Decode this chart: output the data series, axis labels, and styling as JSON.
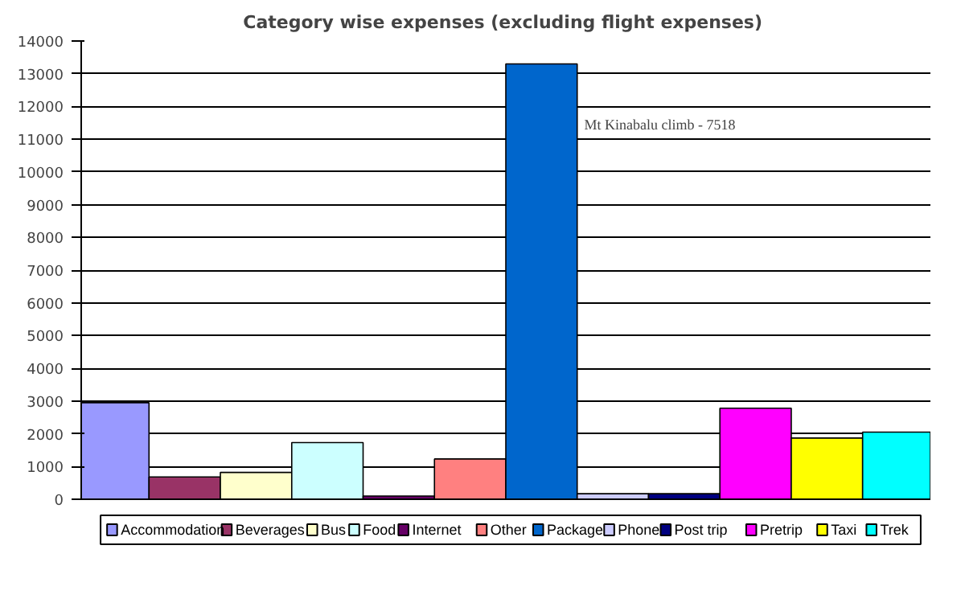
{
  "chart_data": {
    "type": "bar",
    "title": "Category wise expenses  (excluding flight expenses)",
    "categories": [
      null
    ],
    "series": [
      {
        "name": "Accommodation",
        "color": "#9999ff",
        "values": [
          2950
        ]
      },
      {
        "name": "Beverages",
        "color": "#993366",
        "values": [
          680
        ]
      },
      {
        "name": "Bus",
        "color": "#ffffcc",
        "values": [
          820
        ]
      },
      {
        "name": "Food",
        "color": "#ccffff",
        "values": [
          1730
        ]
      },
      {
        "name": "Internet",
        "color": "#660066",
        "values": [
          100
        ]
      },
      {
        "name": "Other",
        "color": "#ff8080",
        "values": [
          1230
        ]
      },
      {
        "name": "Package",
        "color": "#0066cc",
        "values": [
          13300
        ]
      },
      {
        "name": "Phone",
        "color": "#ccccff",
        "values": [
          170
        ]
      },
      {
        "name": "Post trip",
        "color": "#000080",
        "values": [
          170
        ]
      },
      {
        "name": "Pretrip",
        "color": "#ff00ff",
        "values": [
          2780
        ]
      },
      {
        "name": "Taxi",
        "color": "#ffff00",
        "values": [
          1870
        ]
      },
      {
        "name": "Trek",
        "color": "#00ffff",
        "values": [
          2050
        ]
      }
    ],
    "ylim": [
      0,
      14000
    ],
    "yticks": [
      0,
      1000,
      2000,
      3000,
      4000,
      5000,
      6000,
      7000,
      8000,
      9000,
      10000,
      11000,
      12000,
      13000,
      14000
    ],
    "grid": "y",
    "legend": "bottom",
    "tick_labels": "y",
    "annotations": [
      "Mt Kinabalu climb - 7518"
    ]
  }
}
